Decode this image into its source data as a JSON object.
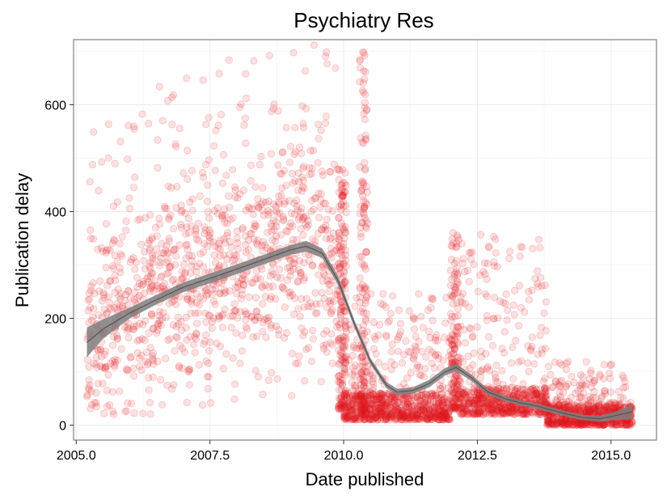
{
  "chart_data": {
    "type": "scatter",
    "title": "Psychiatry Res",
    "xlabel": "Date published",
    "ylabel": "Publication delay",
    "xlim": [
      2004.95,
      2015.85
    ],
    "ylim": [
      -28,
      722
    ],
    "x_ticks": [
      2005.0,
      2007.5,
      2010.0,
      2012.5,
      2015.0
    ],
    "x_tick_labels": [
      "2005.0",
      "2007.5",
      "2010.0",
      "2012.5",
      "2015.0"
    ],
    "y_ticks": [
      0,
      200,
      400,
      600
    ],
    "y_tick_labels": [
      "0",
      "200",
      "400",
      "600"
    ],
    "grid": true,
    "legend": "none",
    "colors": {
      "points": "#e31a1c",
      "smooth_band": "#7f7f7f",
      "smooth_line": "#555555",
      "grid": "#ebebeb",
      "panel_border": "#7f7f7f"
    },
    "point_opacity": 0.13,
    "smooth": {
      "x": [
        2005.2,
        2005.5,
        2006.0,
        2006.5,
        2007.0,
        2007.5,
        2008.0,
        2008.5,
        2009.0,
        2009.3,
        2009.6,
        2009.9,
        2010.2,
        2010.5,
        2010.8,
        2011.0,
        2011.3,
        2011.6,
        2011.9,
        2012.1,
        2012.4,
        2012.7,
        2013.0,
        2013.3,
        2013.6,
        2013.9,
        2014.2,
        2014.5,
        2014.8,
        2015.1,
        2015.4
      ],
      "y": [
        155,
        180,
        210,
        235,
        258,
        275,
        292,
        310,
        328,
        335,
        322,
        270,
        190,
        120,
        75,
        62,
        65,
        78,
        100,
        108,
        88,
        62,
        50,
        42,
        36,
        28,
        20,
        14,
        12,
        18,
        25
      ],
      "band": [
        28,
        18,
        10,
        9,
        9,
        9,
        9,
        9,
        9,
        10,
        9,
        8,
        7,
        6,
        6,
        6,
        6,
        7,
        7,
        7,
        6,
        5,
        5,
        5,
        5,
        5,
        5,
        5,
        6,
        8,
        14
      ]
    },
    "point_clusters": [
      {
        "x_range": [
          2005.2,
          2009.9
        ],
        "y_center": "follows smooth trend",
        "spread": 120,
        "count": 1100
      },
      {
        "x_range": [
          2009.9,
          2010.05
        ],
        "y_range": [
          30,
          480
        ],
        "count": 200
      },
      {
        "x_range": [
          2010.3,
          2010.45
        ],
        "y_range": [
          20,
          700
        ],
        "count": 160
      },
      {
        "x_range": [
          2010.0,
          2012.0
        ],
        "y_range": [
          10,
          60
        ],
        "count": 600
      },
      {
        "x_range": [
          2010.1,
          2012.0
        ],
        "y_range": [
          20,
          250
        ],
        "count": 260
      },
      {
        "x_range": [
          2012.0,
          2012.15
        ],
        "y_range": [
          30,
          360
        ],
        "count": 160
      },
      {
        "x_range": [
          2012.15,
          2013.8
        ],
        "y_range": [
          20,
          70
        ],
        "count": 500
      },
      {
        "x_range": [
          2012.15,
          2013.8
        ],
        "y_range": [
          40,
          360
        ],
        "count": 200
      },
      {
        "x_range": [
          2013.8,
          2015.4
        ],
        "y_range": [
          0,
          40
        ],
        "count": 600
      },
      {
        "x_range": [
          2013.8,
          2015.4
        ],
        "y_range": [
          20,
          120
        ],
        "count": 150
      }
    ]
  }
}
